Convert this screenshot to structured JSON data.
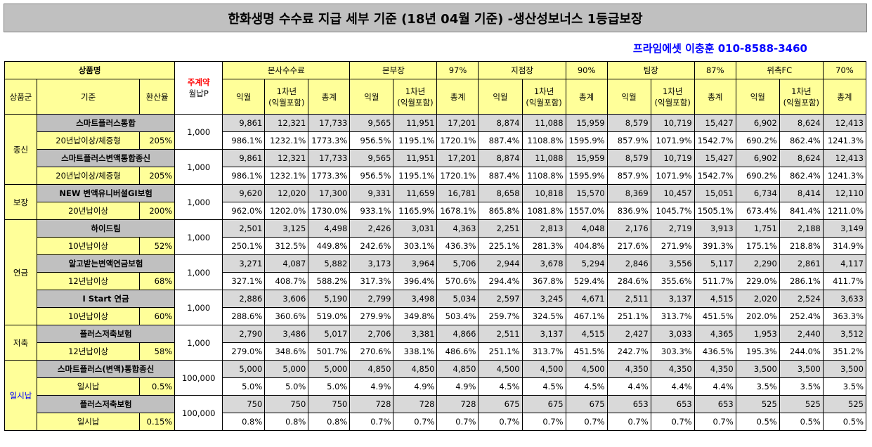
{
  "title": "한화생명 수수료 지급 세부 기준 (18년 04월 기준) -생산성보너스 1등급보장",
  "contact": "프라임에셋 이충훈 010-8588-3460",
  "header": {
    "product_name": "상품명",
    "premium_label": "주계약 월납P",
    "premium_label_top": "주계약",
    "premium_label_bottom": "월납P",
    "groups": [
      {
        "name": "본사수수료",
        "rate": ""
      },
      {
        "name": "본부장",
        "rate": "97%"
      },
      {
        "name": "지점장",
        "rate": "90%"
      },
      {
        "name": "팀장",
        "rate": "87%"
      },
      {
        "name": "위촉FC",
        "rate": "70%"
      }
    ],
    "category": "상품군",
    "basis": "기준",
    "conversion": "환산율",
    "col_month": "익월",
    "col_year1_top": "1차년",
    "col_year1_bottom": "(익월포함)",
    "col_total": "총계"
  },
  "categories": [
    {
      "name": "종신"
    },
    {
      "name": "보장"
    },
    {
      "name": "연금"
    },
    {
      "name": "저축"
    },
    {
      "name": "일시납"
    }
  ],
  "products": [
    {
      "name": "스마트플러스통합",
      "basis": "20년납이상/체증형",
      "rate": "205%",
      "premium": "1,000",
      "values": [
        "9,861",
        "12,321",
        "17,733",
        "9,565",
        "11,951",
        "17,201",
        "8,874",
        "11,088",
        "15,959",
        "8,579",
        "10,719",
        "15,427",
        "6,902",
        "8,624",
        "12,413"
      ],
      "percents": [
        "986.1%",
        "1232.1%",
        "1773.3%",
        "956.5%",
        "1195.1%",
        "1720.1%",
        "887.4%",
        "1108.8%",
        "1595.9%",
        "857.9%",
        "1071.9%",
        "1542.7%",
        "690.2%",
        "862.4%",
        "1241.3%"
      ]
    },
    {
      "name": "스마트플러스변액통합종신",
      "basis": "20년납이상/체증형",
      "rate": "205%",
      "premium": "1,000",
      "values": [
        "9,861",
        "12,321",
        "17,733",
        "9,565",
        "11,951",
        "17,201",
        "8,874",
        "11,088",
        "15,959",
        "8,579",
        "10,719",
        "15,427",
        "6,902",
        "8,624",
        "12,413"
      ],
      "percents": [
        "986.1%",
        "1232.1%",
        "1773.3%",
        "956.5%",
        "1195.1%",
        "1720.1%",
        "887.4%",
        "1108.8%",
        "1595.9%",
        "857.9%",
        "1071.9%",
        "1542.7%",
        "690.2%",
        "862.4%",
        "1241.3%"
      ]
    },
    {
      "name": "NEW 변액유니버셜GI보험",
      "basis": "20년납이상",
      "rate": "200%",
      "premium": "1,000",
      "values": [
        "9,620",
        "12,020",
        "17,300",
        "9,331",
        "11,659",
        "16,781",
        "8,658",
        "10,818",
        "15,570",
        "8,369",
        "10,457",
        "15,051",
        "6,734",
        "8,414",
        "12,110"
      ],
      "percents": [
        "962.0%",
        "1202.0%",
        "1730.0%",
        "933.1%",
        "1165.9%",
        "1678.1%",
        "865.8%",
        "1081.8%",
        "1557.0%",
        "836.9%",
        "1045.7%",
        "1505.1%",
        "673.4%",
        "841.4%",
        "1211.0%"
      ]
    },
    {
      "name": "하이드림",
      "basis": "10년납이상",
      "rate": "52%",
      "premium": "1,000",
      "values": [
        "2,501",
        "3,125",
        "4,498",
        "2,426",
        "3,031",
        "4,363",
        "2,251",
        "2,813",
        "4,048",
        "2,176",
        "2,719",
        "3,913",
        "1,751",
        "2,188",
        "3,149"
      ],
      "percents": [
        "250.1%",
        "312.5%",
        "449.8%",
        "242.6%",
        "303.1%",
        "436.3%",
        "225.1%",
        "281.3%",
        "404.8%",
        "217.6%",
        "271.9%",
        "391.3%",
        "175.1%",
        "218.8%",
        "314.9%"
      ]
    },
    {
      "name": "알고받는변액연금보험",
      "basis": "12년납이상",
      "rate": "68%",
      "premium": "1,000",
      "values": [
        "3,271",
        "4,087",
        "5,882",
        "3,173",
        "3,964",
        "5,706",
        "2,944",
        "3,678",
        "5,294",
        "2,846",
        "3,556",
        "5,117",
        "2,290",
        "2,861",
        "4,117"
      ],
      "percents": [
        "327.1%",
        "408.7%",
        "588.2%",
        "317.3%",
        "396.4%",
        "570.6%",
        "294.4%",
        "367.8%",
        "529.4%",
        "284.6%",
        "355.6%",
        "511.7%",
        "229.0%",
        "286.1%",
        "411.7%"
      ]
    },
    {
      "name": "I Start 연금",
      "basis": "10년납이상",
      "rate": "60%",
      "premium": "1,000",
      "values": [
        "2,886",
        "3,606",
        "5,190",
        "2,799",
        "3,498",
        "5,034",
        "2,597",
        "3,245",
        "4,671",
        "2,511",
        "3,137",
        "4,515",
        "2,020",
        "2,524",
        "3,633"
      ],
      "percents": [
        "288.6%",
        "360.6%",
        "519.0%",
        "279.9%",
        "349.8%",
        "503.4%",
        "259.7%",
        "324.5%",
        "467.1%",
        "251.1%",
        "313.7%",
        "451.5%",
        "202.0%",
        "252.4%",
        "363.3%"
      ]
    },
    {
      "name": "플러스저축보험",
      "basis": "12년납이상",
      "rate": "58%",
      "premium": "1,000",
      "values": [
        "2,790",
        "3,486",
        "5,017",
        "2,706",
        "3,381",
        "4,866",
        "2,511",
        "3,137",
        "4,515",
        "2,427",
        "3,033",
        "4,365",
        "1,953",
        "2,440",
        "3,512"
      ],
      "percents": [
        "279.0%",
        "348.6%",
        "501.7%",
        "270.6%",
        "338.1%",
        "486.6%",
        "251.1%",
        "313.7%",
        "451.5%",
        "242.7%",
        "303.3%",
        "436.5%",
        "195.3%",
        "244.0%",
        "351.2%"
      ]
    },
    {
      "name": "스마트플러스(변액)통합종신",
      "basis": "일시납",
      "rate": "0.5%",
      "premium": "100,000",
      "values": [
        "5,000",
        "5,000",
        "5,000",
        "4,850",
        "4,850",
        "4,850",
        "4,500",
        "4,500",
        "4,500",
        "4,350",
        "4,350",
        "4,350",
        "3,500",
        "3,500",
        "3,500"
      ],
      "percents": [
        "5.0%",
        "5.0%",
        "5.0%",
        "4.9%",
        "4.9%",
        "4.9%",
        "4.5%",
        "4.5%",
        "4.5%",
        "4.4%",
        "4.4%",
        "4.4%",
        "3.5%",
        "3.5%",
        "3.5%"
      ]
    },
    {
      "name": "플러스저축보험",
      "basis": "일시납",
      "rate": "0.15%",
      "premium": "100,000",
      "values": [
        "750",
        "750",
        "750",
        "728",
        "728",
        "728",
        "675",
        "675",
        "675",
        "653",
        "653",
        "653",
        "525",
        "525",
        "525"
      ],
      "percents": [
        "0.8%",
        "0.8%",
        "0.8%",
        "0.7%",
        "0.7%",
        "0.7%",
        "0.7%",
        "0.7%",
        "0.7%",
        "0.7%",
        "0.7%",
        "0.7%",
        "0.5%",
        "0.5%",
        "0.5%"
      ]
    }
  ]
}
